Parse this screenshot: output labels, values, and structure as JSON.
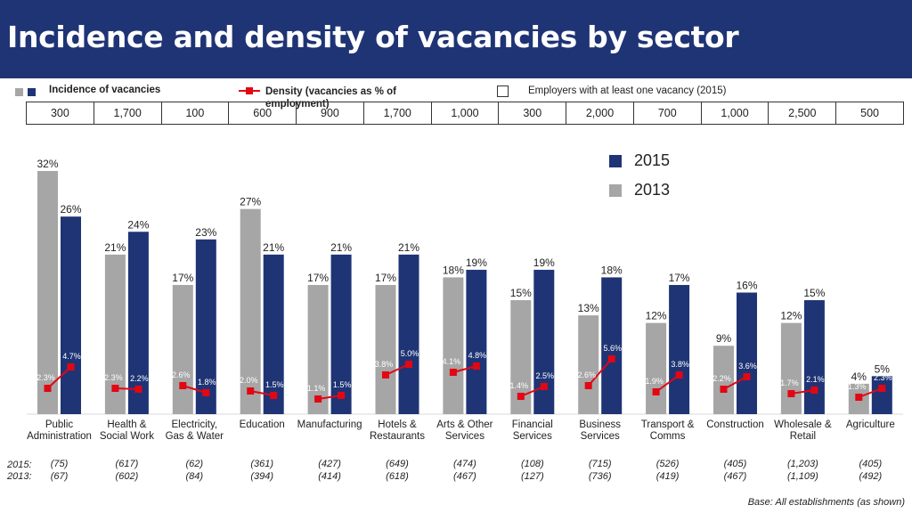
{
  "title": "Incidence and density of vacancies by sector",
  "legend": {
    "incidence_label": "Incidence of  vacancies",
    "density_label": "Density (vacancies as % of employment)",
    "employers_label": "Employers with at least one vacancy (2015)",
    "series_2015": "2015",
    "series_2013": "2013"
  },
  "employers_2015": [
    "300",
    "1,700",
    "100",
    "600",
    "900",
    "1,700",
    "1,000",
    "300",
    "2,000",
    "700",
    "1,000",
    "2,500",
    "500"
  ],
  "row_labels": {
    "y2015": "2015:",
    "y2013": "2013:"
  },
  "base_note": "Base: All establishments (as shown)",
  "colors": {
    "c2013": "#a6a6a6",
    "c2015": "#1f3475",
    "density": "#e30613",
    "title_bg": "#1f3475"
  },
  "chart_data": {
    "type": "bar",
    "categories": [
      [
        "Public",
        "Administration"
      ],
      [
        "Health &",
        "Social Work"
      ],
      [
        "Electricity,",
        "Gas & Water"
      ],
      [
        "Education"
      ],
      [
        "Manufacturing"
      ],
      [
        "Hotels &",
        "Restaurants"
      ],
      [
        "Arts & Other",
        "Services"
      ],
      [
        "Financial",
        "Services"
      ],
      [
        "Business",
        "Services"
      ],
      [
        "Transport &",
        "Comms"
      ],
      [
        "Construction"
      ],
      [
        "Wholesale &",
        "Retail"
      ],
      [
        "Agriculture"
      ]
    ],
    "series": [
      {
        "name": "2013",
        "values": [
          32,
          21,
          17,
          27,
          17,
          17,
          18,
          15,
          13,
          12,
          9,
          12,
          4
        ]
      },
      {
        "name": "2015",
        "values": [
          26,
          24,
          23,
          21,
          21,
          21,
          19,
          19,
          18,
          17,
          16,
          15,
          5
        ]
      }
    ],
    "density": [
      {
        "name": "2013",
        "values": [
          2.3,
          2.3,
          2.6,
          2.0,
          1.1,
          3.8,
          4.1,
          1.4,
          2.6,
          1.9,
          2.2,
          1.7,
          1.3
        ]
      },
      {
        "name": "2015",
        "values": [
          4.7,
          2.2,
          1.8,
          1.5,
          1.5,
          5.0,
          4.8,
          2.5,
          5.6,
          3.8,
          3.6,
          2.1,
          2.3
        ]
      }
    ],
    "density_labels": {
      "2013": [
        "2.3%",
        "2.3%",
        "2.6%",
        "2.0%",
        "1.1%",
        "3.8%",
        "4.1%",
        "1.4%",
        "2.6%",
        "1.9%",
        "2.2%",
        "1.7%",
        "1.3%"
      ],
      "2015": [
        "4.7%",
        "2.2%",
        "1.8%",
        "1.5%",
        "1.5%",
        "5.0%",
        "4.8%",
        "2.5%",
        "5.6%",
        "3.8%",
        "3.6%",
        "2.1%",
        "2.3%"
      ]
    },
    "bases": {
      "2015": [
        "(75)",
        "(617)",
        "(62)",
        "(361)",
        "(427)",
        "(649)",
        "(474)",
        "(108)",
        "(715)",
        "(526)",
        "(405)",
        "(1,203)",
        "(405)"
      ],
      "2013": [
        "(67)",
        "(602)",
        "(84)",
        "(394)",
        "(414)",
        "(618)",
        "(467)",
        "(127)",
        "(736)",
        "(419)",
        "(467)",
        "(1,109)",
        "(492)"
      ]
    },
    "ylim": [
      0,
      32
    ],
    "grid": false,
    "legend_position": "top-right"
  }
}
